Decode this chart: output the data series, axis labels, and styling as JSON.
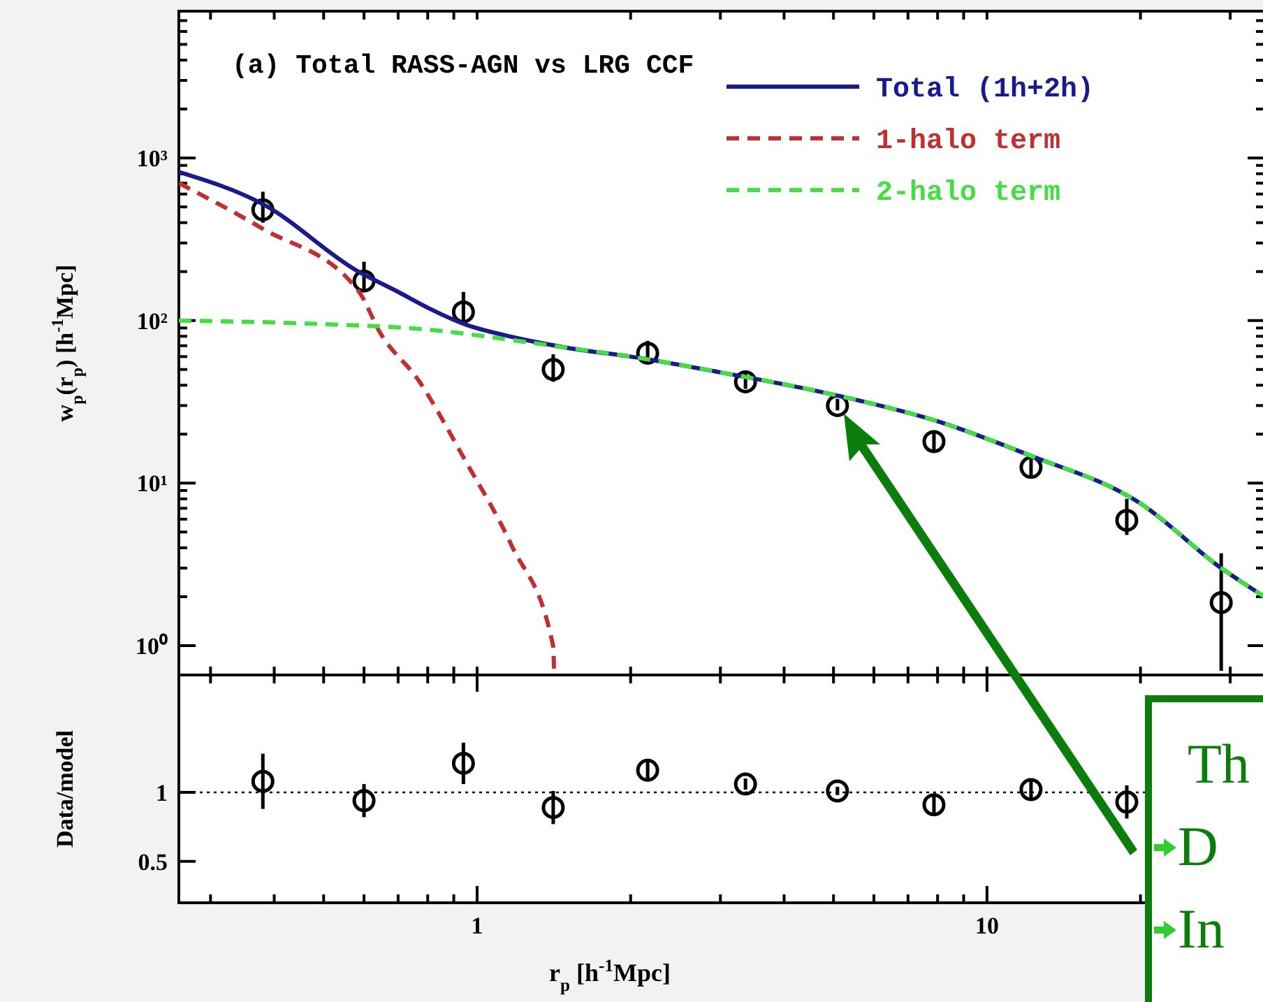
{
  "chart_data": [
    {
      "type": "line",
      "title": "(a) Total RASS-AGN vs LRG CCF",
      "ylabel": "w$_{p}$(r$_{p}$) [h$^{-1}$Mpc]",
      "log": "xy",
      "xlim": [
        0.26,
        35
      ],
      "ylim": [
        0.66,
        8000
      ],
      "tick_labels": "y",
      "legend": "top right",
      "xticks": [
        {
          "value": 0.3,
          "label": null
        },
        {
          "value": 0.4,
          "label": null
        },
        {
          "value": 0.5,
          "label": null
        },
        {
          "value": 0.6,
          "label": null
        },
        {
          "value": 0.7,
          "label": null
        },
        {
          "value": 0.8,
          "label": null
        },
        {
          "value": 0.9,
          "label": null
        },
        {
          "value": 1,
          "label": null
        },
        {
          "value": 2,
          "label": null
        },
        {
          "value": 3,
          "label": null
        },
        {
          "value": 4,
          "label": null
        },
        {
          "value": 5,
          "label": null
        },
        {
          "value": 6,
          "label": null
        },
        {
          "value": 7,
          "label": null
        },
        {
          "value": 8,
          "label": null
        },
        {
          "value": 9,
          "label": null
        },
        {
          "value": 10,
          "label": null
        },
        {
          "value": 20,
          "label": null
        },
        {
          "value": 30,
          "label": null
        }
      ],
      "yticks": [
        {
          "value": 1,
          "label": "10⁰"
        },
        {
          "value": 2,
          "label": null
        },
        {
          "value": 3,
          "label": null
        },
        {
          "value": 4,
          "label": null
        },
        {
          "value": 5,
          "label": null
        },
        {
          "value": 6,
          "label": null
        },
        {
          "value": 7,
          "label": null
        },
        {
          "value": 8,
          "label": null
        },
        {
          "value": 9,
          "label": null
        },
        {
          "value": 10,
          "label": "10¹"
        },
        {
          "value": 20,
          "label": null
        },
        {
          "value": 30,
          "label": null
        },
        {
          "value": 40,
          "label": null
        },
        {
          "value": 50,
          "label": null
        },
        {
          "value": 60,
          "label": null
        },
        {
          "value": 70,
          "label": null
        },
        {
          "value": 80,
          "label": null
        },
        {
          "value": 90,
          "label": null
        },
        {
          "value": 100,
          "label": "10²"
        },
        {
          "value": 200,
          "label": null
        },
        {
          "value": 300,
          "label": null
        },
        {
          "value": 400,
          "label": null
        },
        {
          "value": 500,
          "label": null
        },
        {
          "value": 600,
          "label": null
        },
        {
          "value": 700,
          "label": null
        },
        {
          "value": 800,
          "label": null
        },
        {
          "value": 900,
          "label": null
        },
        {
          "value": 1000,
          "label": "10³"
        },
        {
          "value": 2000,
          "label": null
        },
        {
          "value": 3000,
          "label": null
        },
        {
          "value": 4000,
          "label": null
        },
        {
          "value": 5000,
          "label": null
        },
        {
          "value": 6000,
          "label": null
        },
        {
          "value": 7000,
          "label": null
        },
        {
          "value": 8000,
          "label": null
        }
      ],
      "series": [
        {
          "type": "scatter",
          "color": "#000000",
          "marker": "circle",
          "x": [
            0.38,
            0.6,
            0.94,
            1.41,
            2.16,
            3.36,
            5.09,
            7.87,
            12.2,
            18.8,
            28.8
          ],
          "values": [
            480,
            175,
            113,
            50,
            63,
            42,
            30,
            18,
            12.5,
            5.9,
            1.84
          ],
          "errors": [
            [
              400,
              620
            ],
            [
              155,
              230
            ],
            [
              95,
              150
            ],
            [
              42,
              62
            ],
            [
              55,
              75
            ],
            [
              38,
              47
            ],
            [
              28,
              33
            ],
            [
              16,
              21
            ],
            [
              11,
              14
            ],
            [
              4.8,
              8
            ],
            [
              0.7,
              3.7
            ]
          ]
        },
        {
          "name": "Total (1h+2h)",
          "color": "#1a1a8c",
          "line_style": "solid",
          "x": [
            0.26,
            0.38,
            0.585,
            0.7,
            0.8,
            0.945,
            1.2,
            1.5,
            2,
            3,
            5,
            8,
            12,
            20,
            28.8,
            35
          ],
          "values": [
            820,
            520,
            200,
            150,
            120,
            95,
            78,
            68,
            60,
            48,
            35,
            24,
            15,
            7.5,
            3.0,
            2.0
          ]
        },
        {
          "name": "1-halo term",
          "color": "#c03030",
          "line_style": "dashed",
          "x": [
            0.26,
            0.378,
            0.585,
            0.647,
            0.767,
            0.945,
            1.17,
            1.41,
            1.415
          ],
          "values": [
            700,
            370,
            152,
            83,
            43,
            14,
            4.1,
            0.99,
            0.72
          ]
        },
        {
          "name": "2-halo term",
          "color": "#44dd44",
          "line_style": "dashed",
          "x": [
            0.26,
            0.5,
            0.8,
            1.2,
            1.5,
            2,
            3,
            5,
            8,
            12,
            20,
            28.8,
            35
          ],
          "values": [
            100,
            95,
            88,
            75,
            68,
            60,
            48,
            35,
            24,
            15,
            7.5,
            3.0,
            2.0
          ]
        }
      ]
    },
    {
      "type": "scatter",
      "ylabel": "Data/model",
      "xlabel": "r$_{p}$ [h$^{-1}$Mpc]",
      "log": "x",
      "xlim": [
        0.26,
        35
      ],
      "ylim": [
        0.2,
        1.85
      ],
      "marker": "circle",
      "color": "#000000",
      "xticks": [
        {
          "value": 0.3,
          "label": null
        },
        {
          "value": 0.4,
          "label": null
        },
        {
          "value": 0.5,
          "label": null
        },
        {
          "value": 0.6,
          "label": null
        },
        {
          "value": 0.7,
          "label": null
        },
        {
          "value": 0.8,
          "label": null
        },
        {
          "value": 0.9,
          "label": null
        },
        1,
        {
          "value": 2,
          "label": null
        },
        {
          "value": 3,
          "label": null
        },
        {
          "value": 4,
          "label": null
        },
        {
          "value": 5,
          "label": null
        },
        {
          "value": 6,
          "label": null
        },
        {
          "value": 7,
          "label": null
        },
        {
          "value": 8,
          "label": null
        },
        {
          "value": 9,
          "label": null
        },
        10,
        {
          "value": 20,
          "label": null
        },
        {
          "value": 30,
          "label": null
        }
      ],
      "yticks": [
        0.5,
        1
      ],
      "x": [
        0.38,
        0.6,
        0.94,
        1.41,
        2.16,
        3.36,
        5.09,
        7.87,
        12.2,
        18.8
      ],
      "values": [
        1.08,
        0.94,
        1.21,
        0.89,
        1.16,
        1.06,
        1.01,
        0.91,
        1.02,
        0.93
      ],
      "errors": [
        0.2,
        0.12,
        0.15,
        0.12,
        0.07,
        0.04,
        0.03,
        0.06,
        0.06,
        0.12
      ],
      "ref_lines": [
        {
          "axis": "y",
          "value": 1,
          "line_style": "dotted",
          "color": "#000000"
        }
      ],
      "annotations": [
        "Th",
        "D",
        "In"
      ]
    }
  ]
}
